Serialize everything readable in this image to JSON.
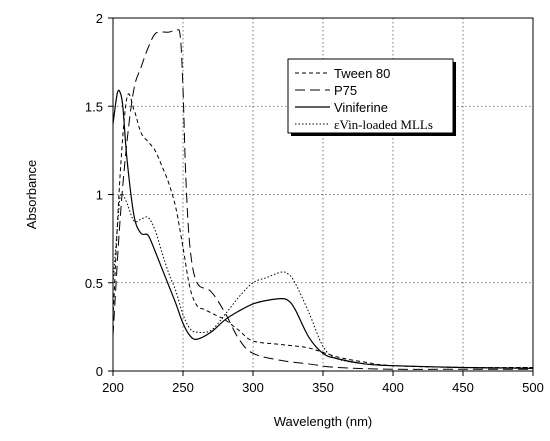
{
  "chart_data": {
    "type": "line",
    "title": "",
    "xlabel": "Wavelength (nm)",
    "ylabel": "Absorbance",
    "xlim": [
      200,
      500
    ],
    "ylim": [
      0,
      2
    ],
    "xticks": [
      200,
      250,
      300,
      350,
      400,
      450,
      500
    ],
    "yticks": [
      0,
      0.5,
      1,
      1.5,
      2
    ],
    "xtick_labels": [
      "200",
      "250",
      "300",
      "350",
      "400",
      "450",
      "500"
    ],
    "ytick_labels": [
      "0",
      "0.5",
      "1",
      "1.5",
      "2"
    ],
    "grid": "dotted",
    "legend_position": "top-right",
    "series": [
      {
        "name": "Tween 80",
        "style": "short-dash",
        "x": [
          200,
          205,
          210,
          215,
          220,
          225,
          230,
          235,
          240,
          245,
          250,
          255,
          260,
          265,
          270,
          275,
          280,
          290,
          300,
          320,
          340,
          360,
          380,
          400,
          450,
          500
        ],
        "y": [
          0.3,
          1.1,
          1.55,
          1.48,
          1.35,
          1.3,
          1.25,
          1.16,
          1.06,
          0.92,
          0.7,
          0.47,
          0.37,
          0.35,
          0.33,
          0.31,
          0.29,
          0.23,
          0.17,
          0.15,
          0.13,
          0.08,
          0.05,
          0.03,
          0.02,
          0.02
        ]
      },
      {
        "name": "P75",
        "style": "long-dash",
        "x": [
          200,
          205,
          210,
          215,
          220,
          225,
          230,
          235,
          240,
          245,
          248,
          250,
          252,
          255,
          260,
          270,
          280,
          290,
          300,
          320,
          340,
          360,
          400,
          450,
          500
        ],
        "y": [
          0.2,
          0.85,
          1.3,
          1.6,
          1.72,
          1.83,
          1.91,
          1.92,
          1.92,
          1.93,
          1.9,
          1.6,
          1.1,
          0.7,
          0.5,
          0.45,
          0.33,
          0.18,
          0.1,
          0.06,
          0.04,
          0.02,
          0.01,
          0.01,
          0.01
        ]
      },
      {
        "name": "Viniferine",
        "style": "solid",
        "x": [
          200,
          203,
          205,
          207,
          210,
          215,
          220,
          225,
          230,
          235,
          240,
          245,
          250,
          255,
          260,
          270,
          280,
          290,
          300,
          310,
          320,
          325,
          330,
          340,
          350,
          360,
          380,
          400,
          450,
          500
        ],
        "y": [
          1.4,
          1.57,
          1.58,
          1.5,
          1.2,
          0.88,
          0.78,
          0.77,
          0.68,
          0.58,
          0.48,
          0.38,
          0.27,
          0.2,
          0.18,
          0.22,
          0.29,
          0.34,
          0.38,
          0.4,
          0.41,
          0.4,
          0.35,
          0.19,
          0.1,
          0.07,
          0.04,
          0.03,
          0.02,
          0.015
        ]
      },
      {
        "name": "εVin-loaded MLLs",
        "style": "dotted",
        "x": [
          200,
          203,
          205,
          207,
          210,
          215,
          220,
          225,
          230,
          235,
          240,
          245,
          250,
          255,
          260,
          270,
          280,
          290,
          300,
          310,
          320,
          325,
          330,
          340,
          350,
          360,
          380,
          400,
          450,
          500
        ],
        "y": [
          0.5,
          0.8,
          0.98,
          1.0,
          0.95,
          0.85,
          0.86,
          0.87,
          0.8,
          0.67,
          0.55,
          0.45,
          0.32,
          0.24,
          0.22,
          0.23,
          0.32,
          0.42,
          0.5,
          0.53,
          0.56,
          0.55,
          0.5,
          0.33,
          0.14,
          0.07,
          0.04,
          0.03,
          0.02,
          0.02
        ]
      }
    ]
  }
}
